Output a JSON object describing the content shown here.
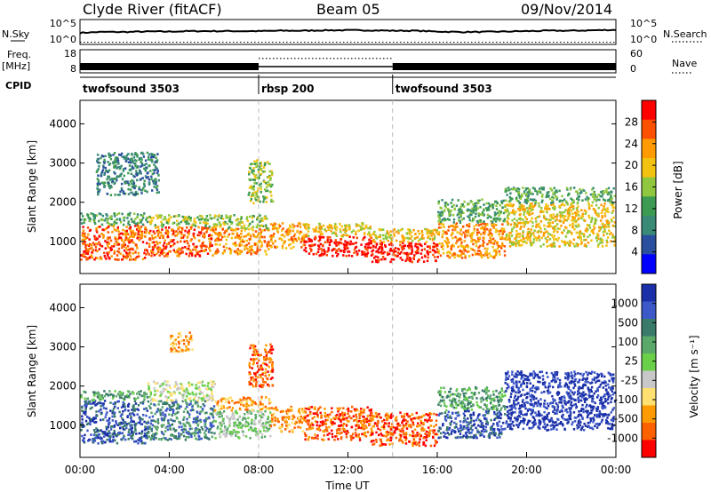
{
  "header": {
    "station": "Clyde River (fitACF)",
    "beam": "Beam 05",
    "date": "09/Nov/2014"
  },
  "chart_data": [
    {
      "type": "line",
      "panel": "noise",
      "left_label": "N.Sky",
      "left_ticks": [
        "10^5",
        "10^0"
      ],
      "right_ticks": [
        "10^5",
        "10^0"
      ],
      "right_label": "N.Search",
      "x_hours": [
        0,
        1,
        2,
        3,
        4,
        5,
        6,
        7,
        8,
        9,
        10,
        11,
        12,
        13,
        14,
        15,
        16,
        17,
        18,
        19,
        20,
        21,
        22,
        23,
        24
      ],
      "n_sky": [
        2.3,
        2.5,
        2.5,
        2.6,
        2.6,
        2.7,
        2.7,
        2.7,
        2.7,
        2.8,
        2.8,
        2.9,
        2.9,
        2.9,
        2.8,
        2.8,
        2.6,
        2.5,
        2.5,
        2.6,
        2.7,
        2.8,
        2.8,
        2.9,
        3.0
      ],
      "n_search": [
        0.1,
        0.1,
        0.1,
        0.1,
        0.1,
        0.1,
        0.1,
        0.1,
        0.1,
        0.1,
        0.1,
        0.1,
        0.1,
        0.1,
        0.1,
        0.1,
        0.1,
        0.1,
        0.1,
        0.1,
        0.1,
        0.1,
        0.1,
        0.1,
        0.1
      ]
    },
    {
      "type": "line",
      "panel": "frequency",
      "left_label": "Freq.",
      "left_unit": "[MHz]",
      "left_ticks": [
        "18",
        "8"
      ],
      "right_ticks": [
        "60",
        "0"
      ],
      "right_label": "Nave",
      "freq_segments": [
        {
          "start_h": 0,
          "end_h": 8.0,
          "freq_mhz": 10.5
        },
        {
          "start_h": 8.0,
          "end_h": 14.0,
          "freq_mhz": 10.5
        },
        {
          "start_h": 14.0,
          "end_h": 24,
          "freq_mhz": 10.5
        }
      ],
      "nave_segments": [
        {
          "start_h": 8.0,
          "end_h": 14.0,
          "nave": 38
        }
      ]
    },
    {
      "type": "table",
      "panel": "cpid",
      "label": "CPID",
      "segments": [
        {
          "name": "twofsound 3503",
          "start_h": 0,
          "end_h": 8.0
        },
        {
          "name": "rbsp 200",
          "start_h": 8.0,
          "end_h": 14.0
        },
        {
          "name": "twofsound 3503",
          "start_h": 14.0,
          "end_h": 24
        }
      ]
    },
    {
      "type": "heatmap",
      "panel": "power",
      "ylabel": "Slant Range [km]",
      "yticks": [
        1000,
        2000,
        3000,
        4000
      ],
      "ylim": [
        180,
        4600
      ],
      "xlim": [
        0,
        24
      ],
      "colorbar_label": "Power [dB]",
      "colorbar_ticks": [
        "28",
        "24",
        "20",
        "16",
        "12",
        "8",
        "4"
      ],
      "colorbar_colors": [
        "#ff0000",
        "#ff5000",
        "#ff9a00",
        "#f3c10f",
        "#8fc73e",
        "#3c9a52",
        "#3a8a78",
        "#2a4f9e",
        "#0000ff"
      ],
      "scatter_bands": [
        {
          "h0": 0.0,
          "h1": 3.0,
          "r0": 560,
          "r1": 1450,
          "v": 28
        },
        {
          "h0": 0.0,
          "h1": 3.0,
          "r0": 1450,
          "r1": 1750,
          "v": 12
        },
        {
          "h0": 3.0,
          "h1": 6.0,
          "r0": 650,
          "r1": 1400,
          "v": 26
        },
        {
          "h0": 3.0,
          "h1": 6.0,
          "r0": 1400,
          "r1": 1700,
          "v": 16
        },
        {
          "h0": 6.0,
          "h1": 8.5,
          "r0": 700,
          "r1": 1350,
          "v": 24
        },
        {
          "h0": 6.0,
          "h1": 8.5,
          "r0": 1350,
          "r1": 1700,
          "v": 14
        },
        {
          "h0": 8.5,
          "h1": 10.0,
          "r0": 850,
          "r1": 1500,
          "v": 22
        },
        {
          "h0": 10.0,
          "h1": 13.0,
          "r0": 650,
          "r1": 1150,
          "v": 30
        },
        {
          "h0": 10.0,
          "h1": 13.0,
          "r0": 1150,
          "r1": 1500,
          "v": 18
        },
        {
          "h0": 13.0,
          "h1": 16.0,
          "r0": 500,
          "r1": 1000,
          "v": 30
        },
        {
          "h0": 13.0,
          "h1": 16.0,
          "r0": 1000,
          "r1": 1350,
          "v": 18
        },
        {
          "h0": 16.0,
          "h1": 19.0,
          "r0": 600,
          "r1": 1500,
          "v": 22
        },
        {
          "h0": 16.0,
          "h1": 19.0,
          "r0": 1500,
          "r1": 2100,
          "v": 10
        },
        {
          "h0": 19.0,
          "h1": 24.0,
          "r0": 900,
          "r1": 2000,
          "v": 20
        },
        {
          "h0": 19.0,
          "h1": 24.0,
          "r0": 2000,
          "r1": 2400,
          "v": 10
        },
        {
          "h0": 0.7,
          "h1": 3.5,
          "r0": 2200,
          "r1": 3300,
          "v": 8
        },
        {
          "h0": 7.5,
          "h1": 8.6,
          "r0": 2000,
          "r1": 3100,
          "v": 16
        }
      ]
    },
    {
      "type": "heatmap",
      "panel": "velocity",
      "ylabel": "Slant Range [km]",
      "yticks": [
        1000,
        2000,
        3000,
        4000
      ],
      "ylim": [
        180,
        4600
      ],
      "xlim": [
        0,
        24
      ],
      "xlabel": "Time UT",
      "xticks": [
        "00:00",
        "04:00",
        "08:00",
        "12:00",
        "16:00",
        "20:00",
        "00:00"
      ],
      "colorbar_label": "Velocity [m s⁻¹]",
      "colorbar_ticks": [
        "1000",
        "500",
        "100",
        "25",
        "-25",
        "-100",
        "-500",
        "-1000"
      ],
      "colorbar_colors": [
        "#1a2fa8",
        "#3c58c9",
        "#3a7a6a",
        "#5aa86a",
        "#6ad04a",
        "#c8c8c8",
        "#ffe070",
        "#ff9a00",
        "#ff6000",
        "#ff0000"
      ],
      "scatter_bands": [
        {
          "h0": 0.0,
          "h1": 3.0,
          "r0": 560,
          "r1": 1650,
          "v": 1
        },
        {
          "h0": 0.0,
          "h1": 3.0,
          "r0": 1650,
          "r1": 1900,
          "v": 3
        },
        {
          "h0": 3.0,
          "h1": 6.0,
          "r0": 650,
          "r1": 1650,
          "v": 2
        },
        {
          "h0": 3.0,
          "h1": 6.0,
          "r0": 1650,
          "r1": 2150,
          "v": 5
        },
        {
          "h0": 6.0,
          "h1": 8.5,
          "r0": 700,
          "r1": 1400,
          "v": 4
        },
        {
          "h0": 6.0,
          "h1": 8.5,
          "r0": 1400,
          "r1": 1750,
          "v": 7
        },
        {
          "h0": 8.5,
          "h1": 10.0,
          "r0": 850,
          "r1": 1500,
          "v": 7
        },
        {
          "h0": 10.0,
          "h1": 13.0,
          "r0": 650,
          "r1": 1500,
          "v": 8
        },
        {
          "h0": 13.0,
          "h1": 16.0,
          "r0": 500,
          "r1": 1350,
          "v": 8
        },
        {
          "h0": 16.0,
          "h1": 19.0,
          "r0": 700,
          "r1": 1400,
          "v": 1
        },
        {
          "h0": 16.0,
          "h1": 19.0,
          "r0": 1400,
          "r1": 2000,
          "v": 3
        },
        {
          "h0": 19.0,
          "h1": 24.0,
          "r0": 900,
          "r1": 2400,
          "v": 0
        },
        {
          "h0": 4.0,
          "h1": 5.0,
          "r0": 2900,
          "r1": 3400,
          "v": 7
        },
        {
          "h0": 7.5,
          "h1": 8.6,
          "r0": 2000,
          "r1": 3100,
          "v": 8
        }
      ]
    }
  ]
}
